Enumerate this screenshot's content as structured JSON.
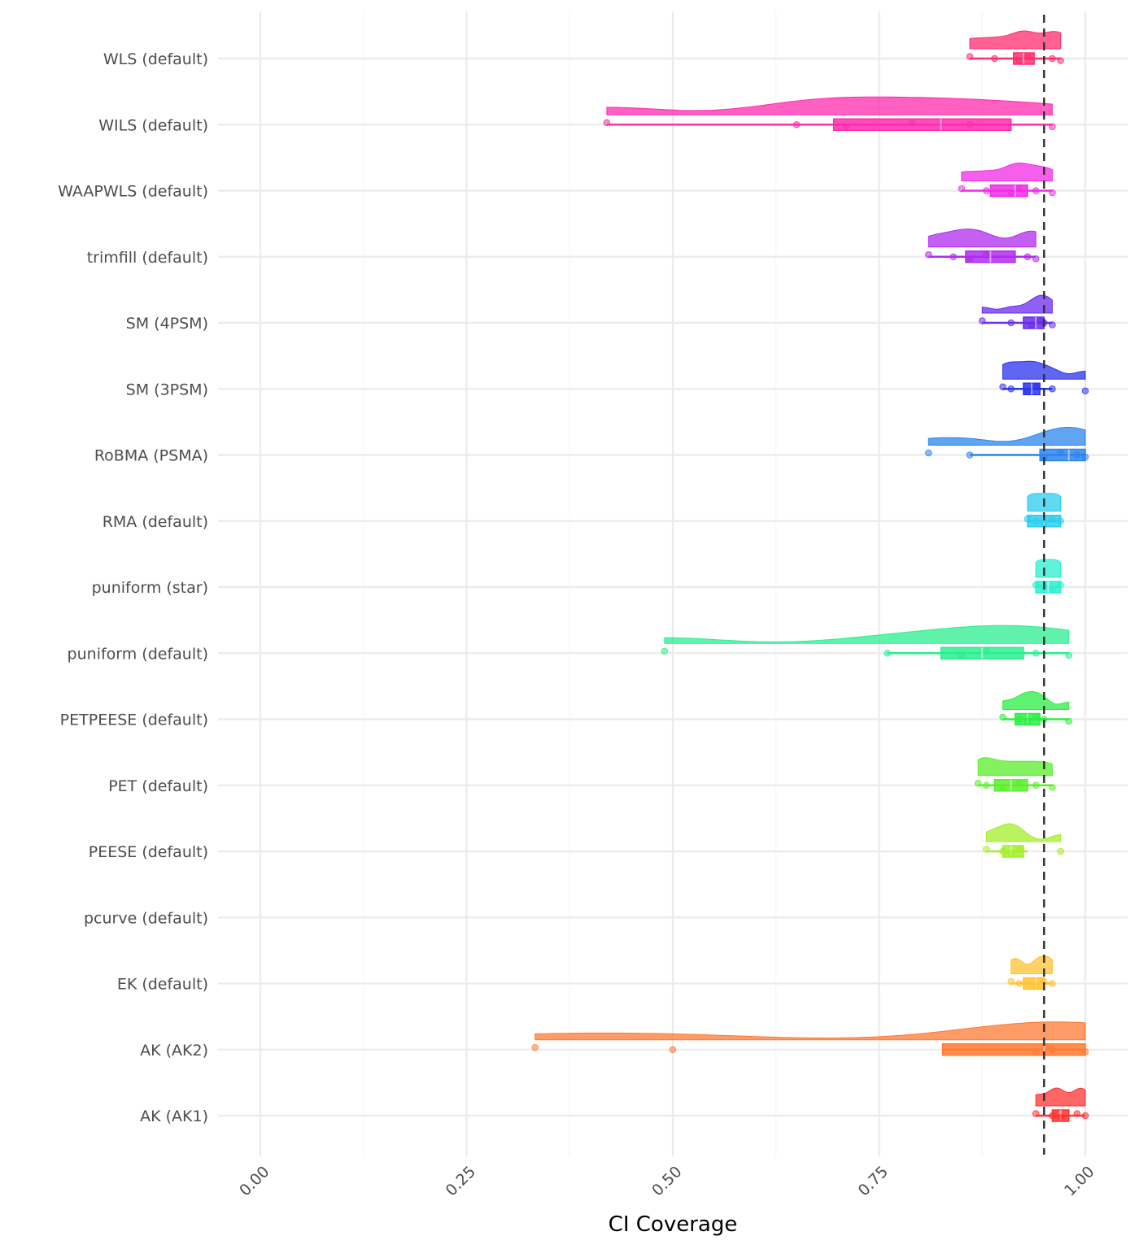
{
  "chart_data": {
    "type": "raincloud",
    "xlabel": "CI Coverage",
    "ylabel": "",
    "xlim": [
      0,
      1
    ],
    "x_ticks": [
      "0.00",
      "0.25",
      "0.50",
      "0.75",
      "1.00"
    ],
    "reference_line": 0.95,
    "grid": true,
    "methods": [
      {
        "name": "WLS (default)",
        "color": "#FF2D6E",
        "points": [
          0.86,
          0.89,
          0.92,
          0.93,
          0.96,
          0.97
        ],
        "q1": 0.913,
        "median": 0.925,
        "q3": 0.938,
        "whisker_lo": 0.86,
        "whisker_hi": 0.97
      },
      {
        "name": "WILS (default)",
        "color": "#FF2BAE",
        "points": [
          0.42,
          0.65,
          0.71,
          0.79,
          0.86,
          0.96
        ],
        "q1": 0.695,
        "median": 0.825,
        "q3": 0.91,
        "whisker_lo": 0.42,
        "whisker_hi": 0.96
      },
      {
        "name": "WAAPWLS (default)",
        "color": "#F02BE6",
        "points": [
          0.85,
          0.88,
          0.91,
          0.92,
          0.94,
          0.96
        ],
        "q1": 0.885,
        "median": 0.915,
        "q3": 0.93,
        "whisker_lo": 0.85,
        "whisker_hi": 0.96
      },
      {
        "name": "trimfill (default)",
        "color": "#B02BEE",
        "points": [
          0.81,
          0.84,
          0.86,
          0.88,
          0.93,
          0.94
        ],
        "q1": 0.855,
        "median": 0.885,
        "q3": 0.915,
        "whisker_lo": 0.81,
        "whisker_hi": 0.94
      },
      {
        "name": "SM (4PSM)",
        "color": "#6A2BEE",
        "points": [
          0.875,
          0.91,
          0.935,
          0.945,
          0.95,
          0.96
        ],
        "q1": 0.925,
        "median": 0.94,
        "q3": 0.95,
        "whisker_lo": 0.875,
        "whisker_hi": 0.96
      },
      {
        "name": "SM (3PSM)",
        "color": "#2B33EE",
        "points": [
          0.9,
          0.91,
          0.93,
          0.94,
          0.96,
          1.0
        ],
        "q1": 0.925,
        "median": 0.935,
        "q3": 0.945,
        "whisker_lo": 0.9,
        "whisker_hi": 0.96
      },
      {
        "name": "RoBMA (PSMA)",
        "color": "#2B85EE",
        "points": [
          0.81,
          0.86,
          0.95,
          0.97,
          0.99,
          1.0
        ],
        "q1": 0.945,
        "median": 0.98,
        "q3": 1.0,
        "whisker_lo": 0.86,
        "whisker_hi": 1.0
      },
      {
        "name": "RMA (default)",
        "color": "#2BCEEE",
        "points": [
          0.93,
          0.94,
          0.95,
          0.96,
          0.97
        ],
        "q1": 0.93,
        "median": 0.95,
        "q3": 0.97,
        "whisker_lo": 0.93,
        "whisker_hi": 0.97
      },
      {
        "name": "puniform (star)",
        "color": "#2BEED0",
        "points": [
          0.94,
          0.95,
          0.96,
          0.97
        ],
        "q1": 0.94,
        "median": 0.955,
        "q3": 0.97,
        "whisker_lo": 0.94,
        "whisker_hi": 0.97
      },
      {
        "name": "puniform (default)",
        "color": "#2BEE8F",
        "points": [
          0.49,
          0.76,
          0.85,
          0.88,
          0.94,
          0.98
        ],
        "q1": 0.825,
        "median": 0.875,
        "q3": 0.925,
        "whisker_lo": 0.76,
        "whisker_hi": 0.98
      },
      {
        "name": "PETPEESE (default)",
        "color": "#2BEE43",
        "points": [
          0.9,
          0.92,
          0.93,
          0.94,
          0.95,
          0.98
        ],
        "q1": 0.915,
        "median": 0.93,
        "q3": 0.945,
        "whisker_lo": 0.9,
        "whisker_hi": 0.98
      },
      {
        "name": "PET (default)",
        "color": "#5BEE2B",
        "points": [
          0.87,
          0.88,
          0.9,
          0.92,
          0.94,
          0.96
        ],
        "q1": 0.89,
        "median": 0.91,
        "q3": 0.93,
        "whisker_lo": 0.87,
        "whisker_hi": 0.96
      },
      {
        "name": "PEESE (default)",
        "color": "#A3EE2B",
        "points": [
          0.88,
          0.9,
          0.91,
          0.92,
          0.97
        ],
        "q1": 0.9,
        "median": 0.91,
        "q3": 0.925,
        "whisker_lo": 0.88,
        "whisker_hi": 0.93
      },
      {
        "name": "pcurve (default)",
        "color": "#E6D62B",
        "points": [],
        "q1": null,
        "median": null,
        "q3": null,
        "whisker_lo": null,
        "whisker_hi": null
      },
      {
        "name": "EK (default)",
        "color": "#FFC233",
        "points": [
          0.91,
          0.92,
          0.94,
          0.95,
          0.96
        ],
        "q1": 0.925,
        "median": 0.94,
        "q3": 0.95,
        "whisker_lo": 0.91,
        "whisker_hi": 0.96
      },
      {
        "name": "AK (AK2)",
        "color": "#FF7A33",
        "points": [
          0.333,
          0.5,
          0.94,
          0.955,
          0.96,
          1.0
        ],
        "q1": 0.827,
        "median": 0.95,
        "q3": 1.0,
        "whisker_lo": 0.827,
        "whisker_hi": 1.0
      },
      {
        "name": "AK (AK1)",
        "color": "#FF3333",
        "points": [
          0.94,
          0.96,
          0.97,
          0.99,
          1.0
        ],
        "q1": 0.96,
        "median": 0.97,
        "q3": 0.98,
        "whisker_lo": 0.94,
        "whisker_hi": 1.0
      }
    ]
  }
}
